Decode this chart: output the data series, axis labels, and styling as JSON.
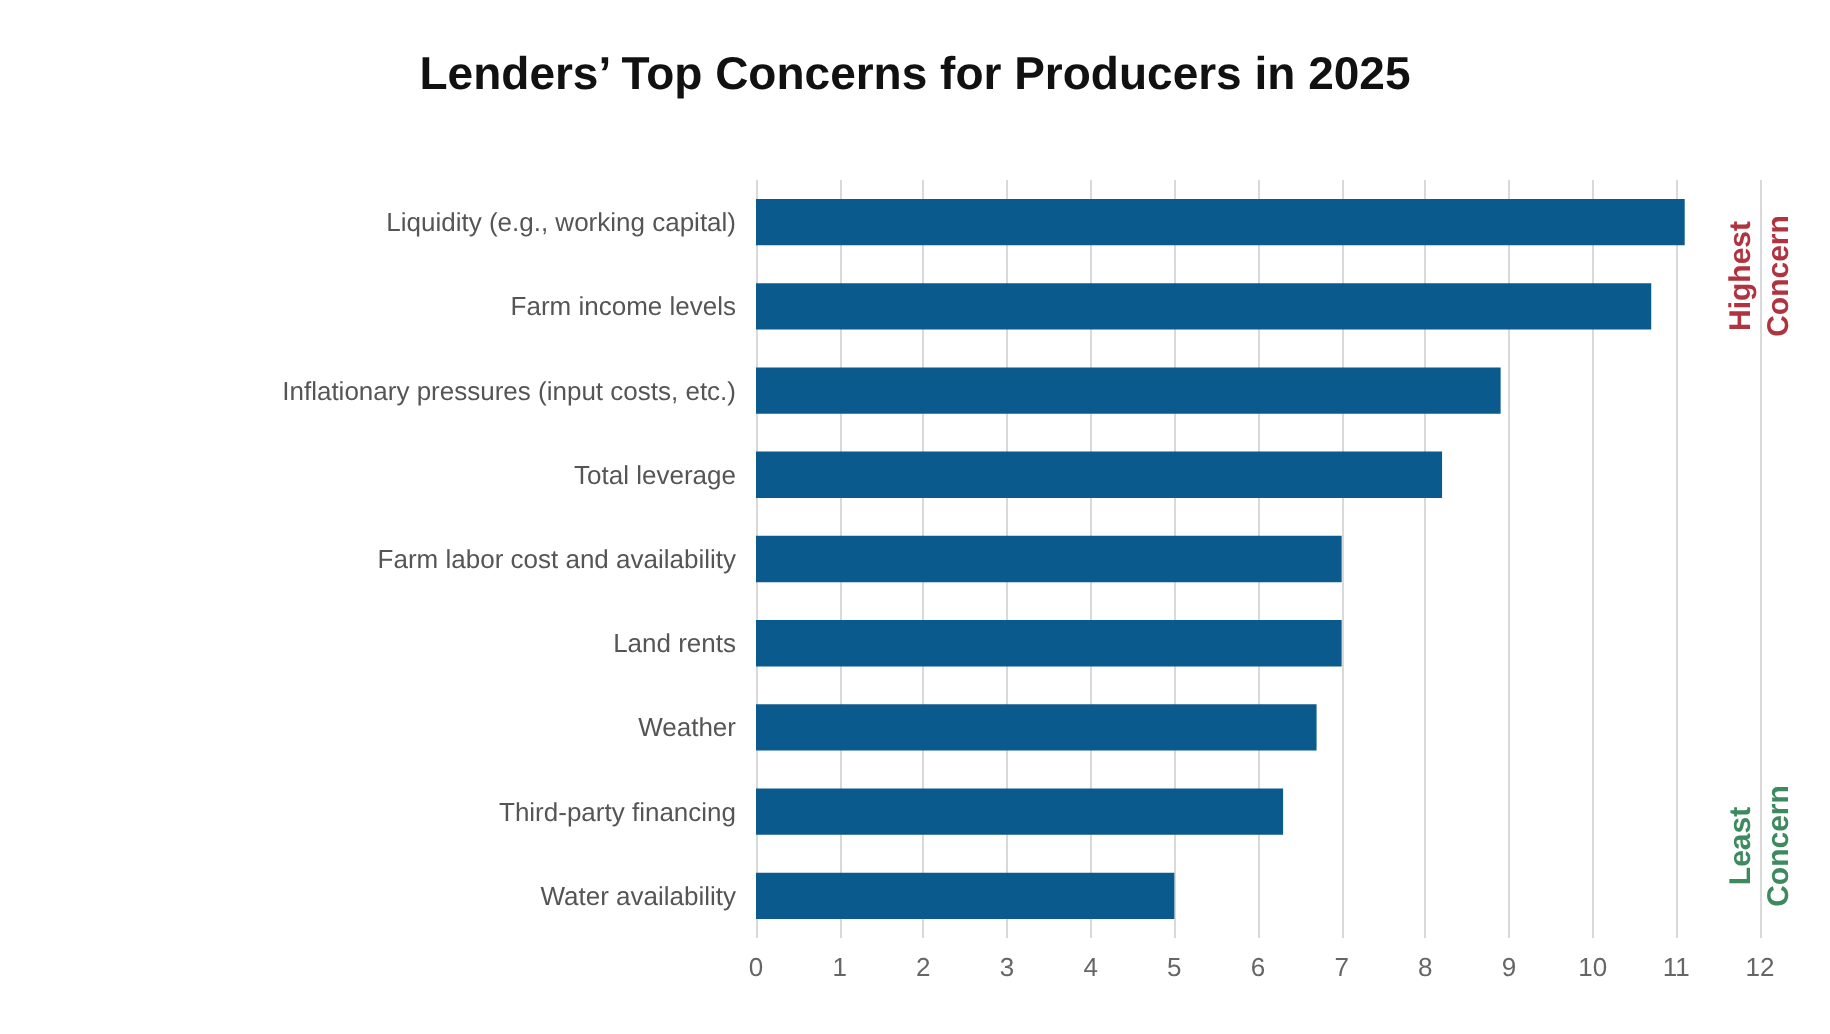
{
  "chart_data": {
    "type": "bar",
    "orientation": "horizontal",
    "title": "Lenders’ Top Concerns for Producers in 2025",
    "categories": [
      "Liquidity (e.g., working capital)",
      "Farm income levels",
      "Inflationary pressures (input costs, etc.)",
      "Total leverage",
      "Farm labor cost and availability",
      "Land rents",
      "Weather",
      "Third-party financing",
      "Water availability"
    ],
    "values": [
      11.1,
      10.7,
      8.9,
      8.2,
      7.0,
      7.0,
      6.7,
      6.3,
      5.0
    ],
    "color": "#0b5a8e",
    "xlim": [
      0,
      12
    ],
    "xticks": [
      0,
      1,
      2,
      3,
      4,
      5,
      6,
      7,
      8,
      9,
      10,
      11,
      12
    ],
    "grid": "x",
    "annotations": [
      "Highest\nConcern",
      "Least\nConcern"
    ]
  }
}
